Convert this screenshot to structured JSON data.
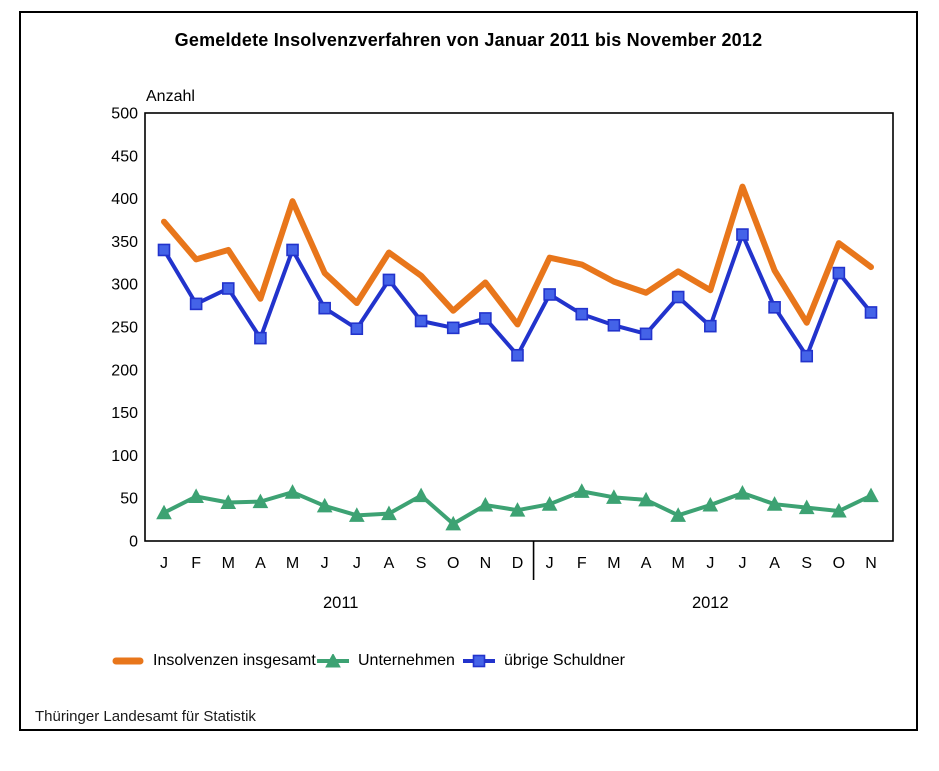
{
  "source": "Thüringer Landesamt für Statistik",
  "chart_data": {
    "type": "line",
    "title": "Gemeldete Insolvenzverfahren von Januar 2011 bis November 2012",
    "ylabel": "Anzahl",
    "xlabel": "",
    "grid": false,
    "legend_position": "bottom",
    "ylim": [
      0,
      500
    ],
    "y_step": 50,
    "y_ticks": [
      0,
      50,
      100,
      150,
      200,
      250,
      300,
      350,
      400,
      450,
      500
    ],
    "x_months": [
      "J",
      "F",
      "M",
      "A",
      "M",
      "J",
      "J",
      "A",
      "S",
      "O",
      "N",
      "D",
      "J",
      "F",
      "M",
      "A",
      "M",
      "J",
      "J",
      "A",
      "S",
      "O",
      "N"
    ],
    "x_years": [
      {
        "label": "2011",
        "start": 0,
        "end": 11
      },
      {
        "label": "2012",
        "start": 12,
        "end": 22
      }
    ],
    "series": [
      {
        "name": "Insolvenzen insgesamt",
        "color": "#E8761B",
        "marker": "none",
        "line_width": 6,
        "values": [
          373,
          329,
          340,
          283,
          397,
          313,
          278,
          337,
          310,
          269,
          302,
          253,
          331,
          323,
          303,
          290,
          315,
          293,
          414,
          316,
          255,
          348,
          320
        ]
      },
      {
        "name": "Unternehmen",
        "color": "#3DA273",
        "marker": "triangle",
        "marker_fill": "#3DA273",
        "line_width": 4,
        "values": [
          33,
          52,
          45,
          46,
          57,
          41,
          30,
          32,
          53,
          20,
          42,
          36,
          43,
          58,
          51,
          48,
          30,
          42,
          56,
          43,
          39,
          35,
          53
        ]
      },
      {
        "name": "übrige Schuldner",
        "color": "#2233CC",
        "marker": "square",
        "marker_fill": "#4463E8",
        "line_width": 4,
        "values": [
          340,
          277,
          295,
          237,
          340,
          272,
          248,
          305,
          257,
          249,
          260,
          217,
          288,
          265,
          252,
          242,
          285,
          251,
          358,
          273,
          216,
          313,
          267
        ]
      }
    ]
  }
}
